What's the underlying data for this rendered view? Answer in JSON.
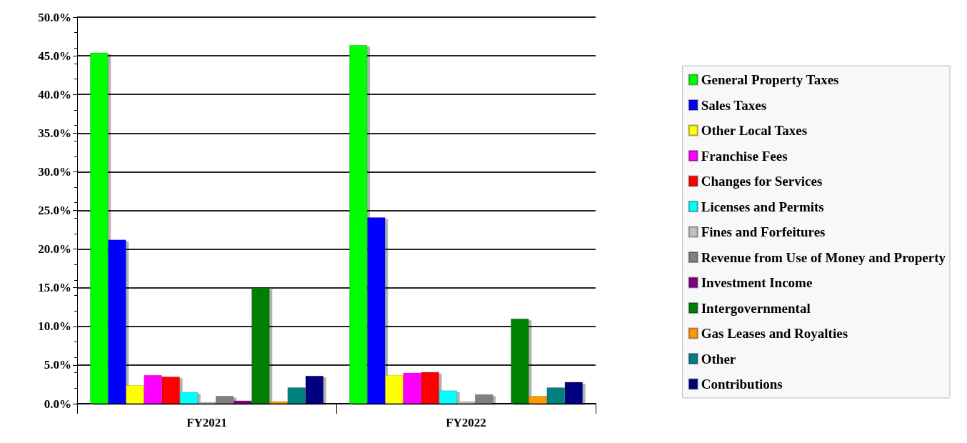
{
  "chart_data": {
    "type": "bar",
    "categories": [
      "FY2021",
      "FY2022"
    ],
    "series": [
      {
        "name": "General Property Taxes",
        "color": "#00ff00",
        "values": [
          45.4,
          46.4
        ]
      },
      {
        "name": "Sales Taxes",
        "color": "#0000ff",
        "values": [
          21.2,
          24.1
        ]
      },
      {
        "name": "Other Local Taxes",
        "color": "#ffff00",
        "values": [
          2.4,
          3.7
        ]
      },
      {
        "name": "Franchise Fees",
        "color": "#ff00ff",
        "values": [
          3.7,
          4.0
        ]
      },
      {
        "name": "Changes for Services",
        "color": "#ff0000",
        "values": [
          3.5,
          4.1
        ]
      },
      {
        "name": "Licenses and Permits",
        "color": "#00ffff",
        "values": [
          1.5,
          1.7
        ]
      },
      {
        "name": "Fines and Forfeitures",
        "color": "#c0c0c0",
        "values": [
          0.2,
          0.3
        ]
      },
      {
        "name": "Revenue from Use of Money and Property",
        "color": "#808080",
        "values": [
          1.0,
          1.2
        ]
      },
      {
        "name": "Investment Income",
        "color": "#800080",
        "values": [
          0.4,
          null
        ]
      },
      {
        "name": "Intergovernmental",
        "color": "#008000",
        "values": [
          15.0,
          11.0
        ]
      },
      {
        "name": "Gas Leases and Royalties",
        "color": "#ff9900",
        "values": [
          0.3,
          1.0
        ]
      },
      {
        "name": "Other",
        "color": "#008080",
        "values": [
          2.1,
          2.1
        ]
      },
      {
        "name": "Contributions",
        "color": "#000080",
        "values": [
          3.6,
          2.8
        ]
      }
    ],
    "ylim": [
      0,
      50
    ],
    "yticks": [
      {
        "value": 0,
        "label": "0.0%"
      },
      {
        "value": 5,
        "label": "5.0%"
      },
      {
        "value": 10,
        "label": "10.0%"
      },
      {
        "value": 15,
        "label": "15.0%"
      },
      {
        "value": 20,
        "label": "20.0%"
      },
      {
        "value": 25,
        "label": "25.0%"
      },
      {
        "value": 30,
        "label": "30.0%"
      },
      {
        "value": 35,
        "label": "35.0%"
      },
      {
        "value": 40,
        "label": "40.0%"
      },
      {
        "value": 45,
        "label": "45.0%"
      },
      {
        "value": 50,
        "label": "50.0%"
      }
    ],
    "grid": "y",
    "legend": "right"
  }
}
